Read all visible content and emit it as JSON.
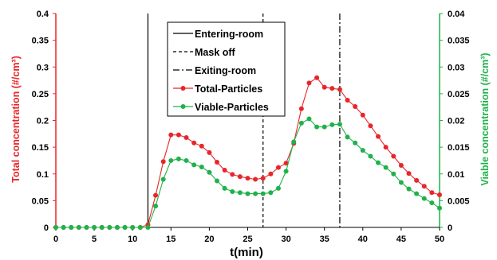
{
  "chart_data": {
    "type": "line",
    "xlabel": "t(min)",
    "ylabel_left": "Total concentration (#/cm³)",
    "ylabel_right": "Viable concentration (#/cm³)",
    "xlim": [
      0,
      50
    ],
    "ylim_left": [
      0,
      0.4
    ],
    "ylim_right": [
      0,
      0.04
    ],
    "x_ticks": [
      "0",
      "5",
      "10",
      "15",
      "20",
      "25",
      "30",
      "35",
      "40",
      "45",
      "50"
    ],
    "y_left_ticks": [
      "0",
      "0.05",
      "0.1",
      "0.15",
      "0.2",
      "0.25",
      "0.3",
      "0.35",
      "0.4"
    ],
    "y_right_ticks": [
      "0",
      "0.005",
      "0.01",
      "0.015",
      "0.02",
      "0.025",
      "0.03",
      "0.035",
      "0.04"
    ],
    "grid": false,
    "legend_position": "top-center",
    "colors": {
      "total": "#e8262a",
      "viable": "#1fb24a",
      "left_axis": "#e8262a",
      "right_axis": "#1fb24a"
    },
    "vlines": [
      {
        "name": "Entering-room",
        "x": 12,
        "style": "solid"
      },
      {
        "name": "Mask off",
        "x": 27,
        "style": "dashed"
      },
      {
        "name": "Exiting-room",
        "x": 37,
        "style": "dashdot"
      }
    ],
    "series": [
      {
        "name": "Total-Particles",
        "axis": "left",
        "x": [
          0,
          1,
          2,
          3,
          4,
          5,
          6,
          7,
          8,
          9,
          10,
          11,
          12,
          13,
          14,
          15,
          16,
          17,
          18,
          19,
          20,
          21,
          22,
          23,
          24,
          25,
          26,
          27,
          28,
          29,
          30,
          31,
          32,
          33,
          34,
          35,
          36,
          37,
          38,
          39,
          40,
          41,
          42,
          43,
          44,
          45,
          46,
          47,
          48,
          49,
          50
        ],
        "values": [
          0,
          0,
          0,
          0,
          0,
          0,
          0,
          0,
          0,
          0,
          0,
          0,
          0.005,
          0.06,
          0.123,
          0.173,
          0.173,
          0.168,
          0.158,
          0.152,
          0.14,
          0.122,
          0.107,
          0.099,
          0.095,
          0.092,
          0.09,
          0.092,
          0.1,
          0.112,
          0.12,
          0.157,
          0.222,
          0.27,
          0.28,
          0.262,
          0.26,
          0.258,
          0.238,
          0.226,
          0.21,
          0.19,
          0.17,
          0.15,
          0.133,
          0.116,
          0.101,
          0.088,
          0.077,
          0.065,
          0.061
        ]
      },
      {
        "name": "Viable-Particles",
        "axis": "right",
        "x": [
          0,
          1,
          2,
          3,
          4,
          5,
          6,
          7,
          8,
          9,
          10,
          11,
          12,
          13,
          14,
          15,
          16,
          17,
          18,
          19,
          20,
          21,
          22,
          23,
          24,
          25,
          26,
          27,
          28,
          29,
          30,
          31,
          32,
          33,
          34,
          35,
          36,
          37,
          38,
          39,
          40,
          41,
          42,
          43,
          44,
          45,
          46,
          47,
          48,
          49,
          50
        ],
        "values": [
          0,
          0,
          0,
          0,
          0,
          0,
          0,
          0,
          0,
          0,
          0,
          0,
          0,
          0.004,
          0.009,
          0.0125,
          0.0128,
          0.0125,
          0.0117,
          0.0113,
          0.0103,
          0.0087,
          0.0073,
          0.0067,
          0.0065,
          0.0063,
          0.0063,
          0.0063,
          0.0065,
          0.0073,
          0.0105,
          0.016,
          0.0195,
          0.0203,
          0.0188,
          0.0188,
          0.0192,
          0.0193,
          0.0169,
          0.0158,
          0.0144,
          0.0133,
          0.0121,
          0.0112,
          0.01,
          0.0084,
          0.0072,
          0.0063,
          0.0054,
          0.0046,
          0.0036
        ]
      }
    ]
  }
}
